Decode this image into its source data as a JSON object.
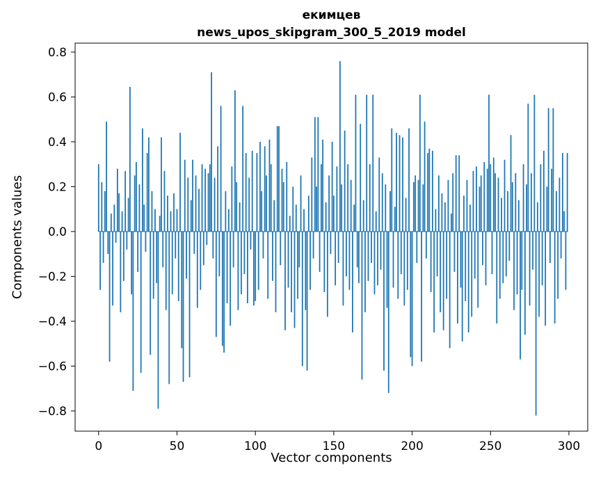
{
  "title": {
    "line1": "екимцев",
    "line2": "news_upos_skipgram_300_5_2019 model"
  },
  "chart_data": {
    "type": "bar",
    "title": "екимцев — news_upos_skipgram_300_5_2019 model",
    "xlabel": "Vector components",
    "ylabel": "Components values",
    "bar_color": "#1f77b4",
    "xlim": [
      -15,
      312
    ],
    "ylim": [
      -0.89,
      0.84
    ],
    "x_ticks": [
      0,
      50,
      100,
      150,
      200,
      250,
      300
    ],
    "x_tick_labels": [
      "0",
      "50",
      "100",
      "150",
      "200",
      "250",
      "300"
    ],
    "y_ticks": [
      0.8,
      0.6,
      0.4,
      0.2,
      0.0,
      -0.2,
      -0.4,
      -0.6,
      -0.8
    ],
    "y_tick_labels": [
      "0.8",
      "0.6",
      "0.4",
      "0.2",
      "0.0",
      "−0.2",
      "−0.4",
      "−0.6",
      "−0.8"
    ],
    "values": [
      0.3,
      -0.26,
      0.22,
      -0.14,
      0.18,
      0.49,
      -0.1,
      -0.58,
      0.08,
      -0.33,
      0.12,
      -0.05,
      0.28,
      0.17,
      -0.36,
      0.09,
      -0.22,
      0.27,
      -0.08,
      0.15,
      0.645,
      -0.28,
      -0.71,
      0.25,
      0.31,
      -0.18,
      0.21,
      -0.63,
      0.46,
      0.12,
      -0.09,
      0.35,
      0.42,
      -0.55,
      0.18,
      -0.3,
      0.1,
      -0.23,
      -0.79,
      0.07,
      0.42,
      -0.16,
      0.27,
      -0.35,
      0.16,
      -0.68,
      0.09,
      -0.28,
      0.17,
      -0.12,
      0.1,
      -0.31,
      0.44,
      -0.52,
      -0.67,
      0.32,
      -0.21,
      0.24,
      -0.65,
      0.14,
      0.32,
      -0.1,
      0.25,
      -0.34,
      0.19,
      -0.26,
      0.3,
      -0.15,
      0.28,
      -0.06,
      0.26,
      0.3,
      0.71,
      -0.12,
      0.24,
      -0.47,
      0.38,
      -0.2,
      0.56,
      -0.51,
      -0.54,
      0.18,
      -0.32,
      0.1,
      -0.42,
      0.29,
      -0.16,
      0.63,
      0.22,
      -0.35,
      0.13,
      -0.28,
      0.56,
      -0.19,
      0.35,
      -0.32,
      0.24,
      -0.08,
      0.36,
      -0.33,
      -0.31,
      0.35,
      -0.26,
      0.4,
      0.18,
      -0.12,
      0.38,
      0.25,
      -0.3,
      0.41,
      0.3,
      -0.22,
      0.14,
      -0.36,
      0.47,
      0.47,
      -0.15,
      0.28,
      0.22,
      -0.44,
      0.31,
      -0.25,
      0.07,
      -0.36,
      0.2,
      -0.43,
      0.12,
      -0.3,
      -0.16,
      0.25,
      -0.6,
      0.1,
      -0.35,
      -0.62,
      0.16,
      -0.26,
      0.33,
      -0.12,
      0.51,
      0.2,
      0.51,
      -0.18,
      0.3,
      0.41,
      -0.27,
      0.13,
      -0.38,
      0.25,
      -0.1,
      0.4,
      0.16,
      -0.24,
      0.29,
      -0.14,
      0.76,
      0.21,
      -0.33,
      0.45,
      -0.2,
      0.3,
      -0.26,
      0.23,
      -0.45,
      0.12,
      0.61,
      -0.16,
      -0.23,
      0.48,
      -0.66,
      0.14,
      -0.36,
      0.61,
      -0.22,
      0.3,
      -0.14,
      0.61,
      -0.28,
      0.09,
      -0.24,
      0.33,
      -0.17,
      0.26,
      -0.62,
      0.21,
      -0.34,
      -0.72,
      0.18,
      0.46,
      -0.25,
      0.11,
      0.44,
      -0.3,
      0.43,
      -0.19,
      0.42,
      -0.33,
      0.15,
      -0.26,
      0.46,
      -0.56,
      -0.6,
      0.22,
      0.25,
      -0.14,
      0.23,
      0.61,
      -0.58,
      0.21,
      0.49,
      -0.12,
      0.35,
      0.37,
      -0.27,
      0.36,
      -0.45,
      0.1,
      -0.2,
      0.25,
      -0.36,
      0.17,
      -0.44,
      0.13,
      -0.3,
      0.23,
      -0.52,
      0.08,
      0.26,
      -0.18,
      0.34,
      -0.41,
      0.34,
      -0.25,
      -0.49,
      0.16,
      -0.31,
      0.23,
      -0.45,
      0.12,
      -0.38,
      0.27,
      -0.21,
      0.29,
      -0.34,
      0.2,
      0.25,
      -0.15,
      0.31,
      -0.24,
      0.28,
      0.61,
      0.3,
      -0.19,
      0.33,
      0.26,
      -0.41,
      0.24,
      -0.3,
      0.15,
      -0.23,
      0.32,
      -0.2,
      0.18,
      -0.13,
      0.43,
      0.22,
      -0.35,
      0.26,
      -0.28,
      0.14,
      -0.57,
      -0.26,
      0.3,
      -0.46,
      0.21,
      0.57,
      -0.33,
      0.26,
      -0.17,
      0.61,
      -0.82,
      0.13,
      -0.38,
      0.3,
      -0.24,
      0.36,
      -0.42,
      0.2,
      0.55,
      -0.14,
      0.28,
      0.55,
      -0.41,
      0.18,
      -0.3,
      0.24,
      -0.12,
      0.35,
      0.09,
      -0.26,
      0.35
    ]
  }
}
